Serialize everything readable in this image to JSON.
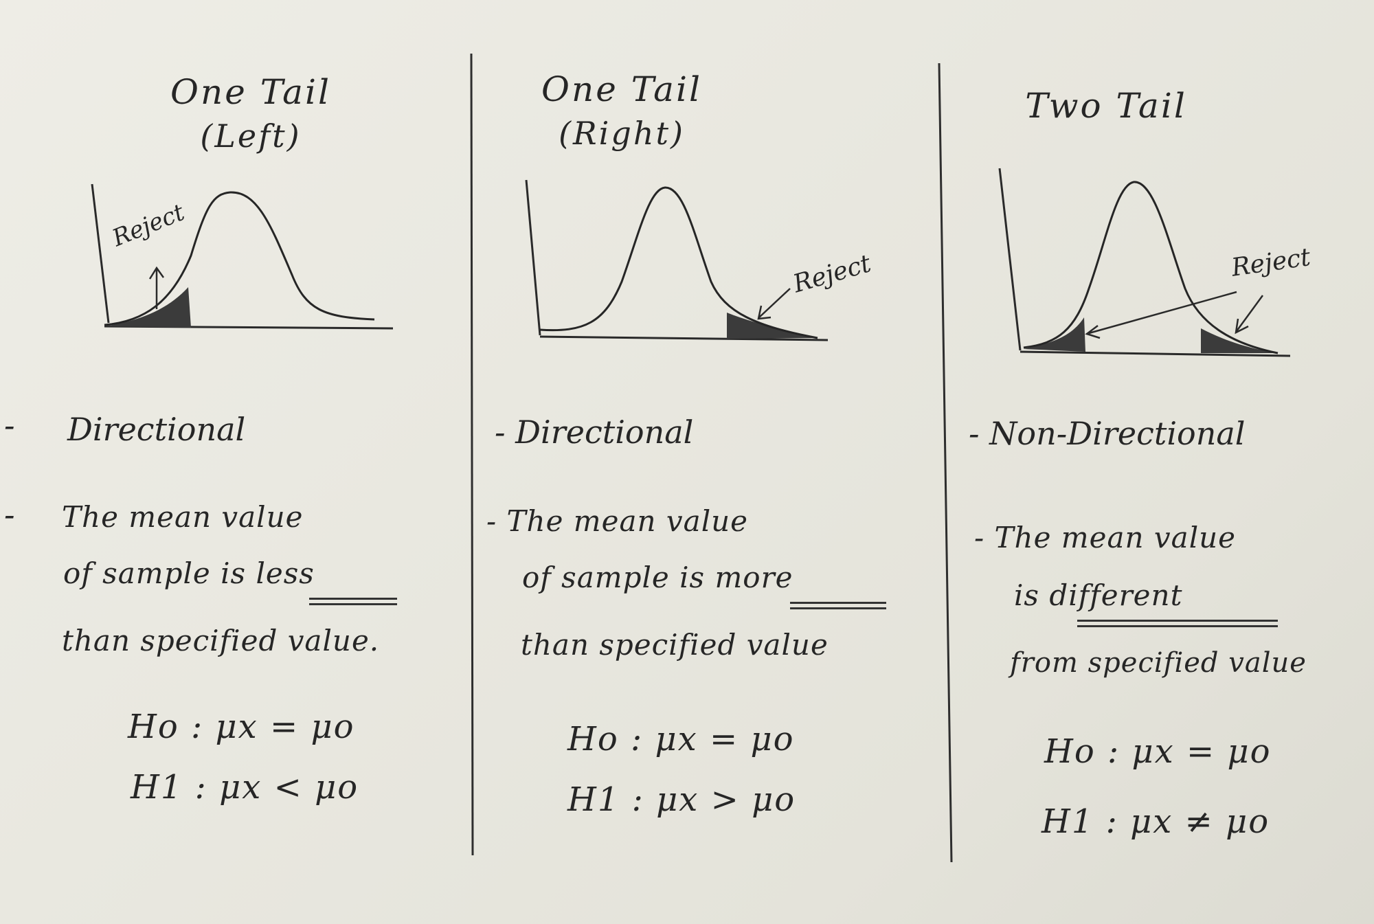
{
  "columns": [
    {
      "title_line1": "One Tail",
      "title_line2": "(Left)",
      "reject_label": "Reject",
      "type_text": "Directional",
      "desc_line1": "The mean value",
      "desc_line2_pre": "of sample is ",
      "desc_line2_emph": "less",
      "desc_line3": "than specified value.",
      "h0": "Ho : μx = μo",
      "h1": "H1 : μx < μo"
    },
    {
      "title_line1": "One Tail",
      "title_line2": "(Right)",
      "reject_label": "Reject",
      "type_text": "- Directional",
      "desc_line1": "- The mean value",
      "desc_line2_pre": "of sample is ",
      "desc_line2_emph": "more",
      "desc_line3": "than specified value",
      "h0": "Ho : μx = μo",
      "h1": "H1 : μx > μo"
    },
    {
      "title_line1": "Two Tail",
      "reject_label": "Reject",
      "type_text": "- Non-Directional",
      "desc_line1": "- The mean value",
      "desc_line2_pre": "is ",
      "desc_line2_emph": "different",
      "desc_line3": "from specified value",
      "h0": "Ho : μx = μo",
      "h1": "H1 : μx ≠ μo"
    }
  ],
  "margin_dashes": [
    "-",
    "-"
  ]
}
